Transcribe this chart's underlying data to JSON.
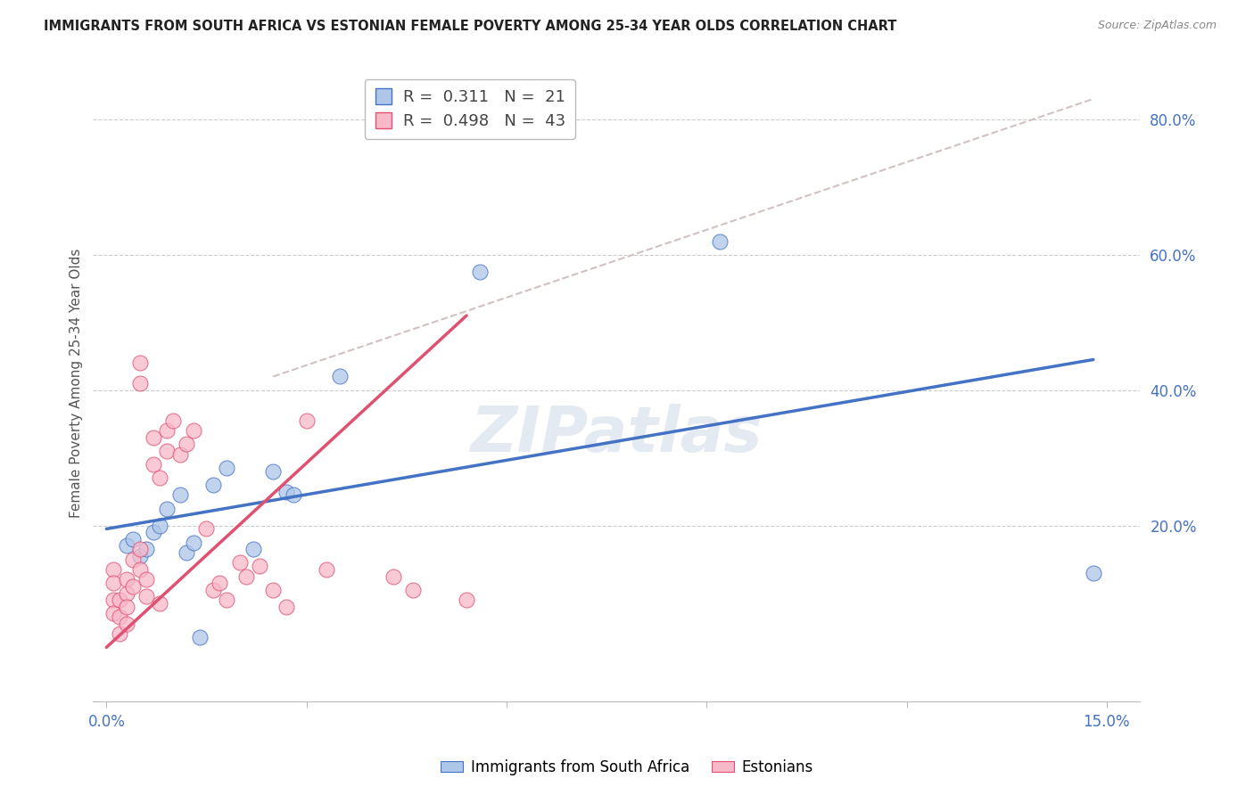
{
  "title": "IMMIGRANTS FROM SOUTH AFRICA VS ESTONIAN FEMALE POVERTY AMONG 25-34 YEAR OLDS CORRELATION CHART",
  "source": "Source: ZipAtlas.com",
  "ylabel": "Female Poverty Among 25-34 Year Olds",
  "legend_blue_R": "0.311",
  "legend_blue_N": "21",
  "legend_pink_R": "0.498",
  "legend_pink_N": "43",
  "legend_blue_label": "Immigrants from South Africa",
  "legend_pink_label": "Estonians",
  "xlim": [
    -0.002,
    0.155
  ],
  "ylim": [
    -0.06,
    0.88
  ],
  "yticks": [
    0.2,
    0.4,
    0.6,
    0.8
  ],
  "xticks": [
    0.0,
    0.03,
    0.06,
    0.09,
    0.12,
    0.15
  ],
  "blue_color": "#aec6e8",
  "blue_line_color": "#4472c4",
  "pink_color": "#f7b8c8",
  "pink_line_color": "#e05070",
  "diagonal_color": "#ccbbbb",
  "watermark_color": "#ccd9e8",
  "blue_scatter_x": [
    0.003,
    0.004,
    0.005,
    0.006,
    0.007,
    0.008,
    0.009,
    0.011,
    0.012,
    0.013,
    0.014,
    0.016,
    0.018,
    0.022,
    0.025,
    0.027,
    0.028,
    0.035,
    0.056,
    0.092,
    0.148
  ],
  "blue_scatter_y": [
    0.17,
    0.18,
    0.155,
    0.165,
    0.19,
    0.2,
    0.225,
    0.245,
    0.16,
    0.175,
    0.035,
    0.26,
    0.285,
    0.165,
    0.28,
    0.25,
    0.245,
    0.42,
    0.575,
    0.62,
    0.13
  ],
  "pink_scatter_x": [
    0.001,
    0.001,
    0.001,
    0.001,
    0.002,
    0.002,
    0.002,
    0.003,
    0.003,
    0.003,
    0.003,
    0.004,
    0.004,
    0.005,
    0.005,
    0.005,
    0.005,
    0.006,
    0.006,
    0.007,
    0.007,
    0.008,
    0.008,
    0.009,
    0.009,
    0.01,
    0.011,
    0.012,
    0.013,
    0.015,
    0.016,
    0.017,
    0.018,
    0.02,
    0.021,
    0.023,
    0.025,
    0.027,
    0.03,
    0.033,
    0.043,
    0.046,
    0.054
  ],
  "pink_scatter_y": [
    0.135,
    0.115,
    0.09,
    0.07,
    0.09,
    0.065,
    0.04,
    0.12,
    0.1,
    0.08,
    0.055,
    0.15,
    0.11,
    0.44,
    0.41,
    0.165,
    0.135,
    0.12,
    0.095,
    0.33,
    0.29,
    0.27,
    0.085,
    0.34,
    0.31,
    0.355,
    0.305,
    0.32,
    0.34,
    0.195,
    0.105,
    0.115,
    0.09,
    0.145,
    0.125,
    0.14,
    0.105,
    0.08,
    0.355,
    0.135,
    0.125,
    0.105,
    0.09
  ],
  "blue_line_x": [
    0.0,
    0.148
  ],
  "blue_line_y": [
    0.195,
    0.445
  ],
  "pink_line_x": [
    0.0,
    0.054
  ],
  "pink_line_y": [
    0.02,
    0.51
  ],
  "diag_line_x": [
    0.025,
    0.148
  ],
  "diag_line_y": [
    0.42,
    0.83
  ]
}
